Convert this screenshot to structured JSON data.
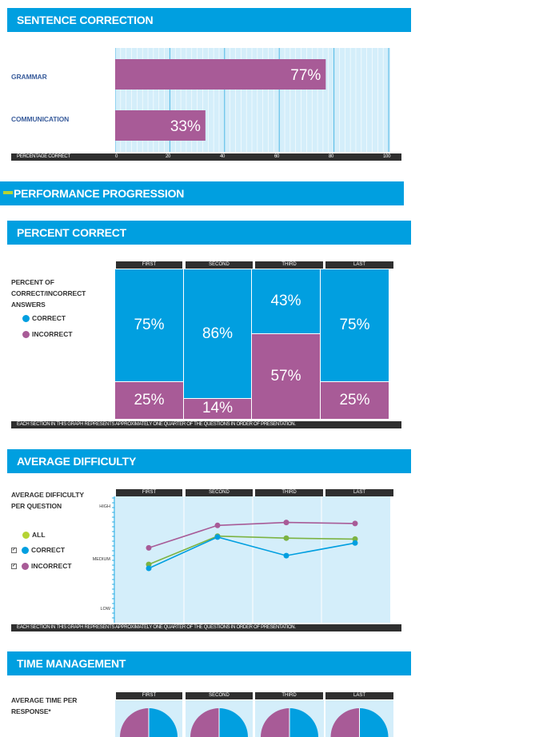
{
  "sections": {
    "sentence_correction": "SENTENCE CORRECTION",
    "performance_progression": "PERFORMANCE PROGRESSION",
    "percent_correct": "PERCENT CORRECT",
    "average_difficulty": "AVERAGE DIFFICULTY",
    "time_management": "TIME MANAGEMENT"
  },
  "colors": {
    "header": "#009fe0",
    "correct": "#019fe0",
    "incorrect": "#a85b97",
    "all": "#7cb342",
    "plot_bg": "#d4eefa"
  },
  "sentence_correction": {
    "axis_title": "PERCENTAGE CORRECT",
    "ticks": [
      "0",
      "20",
      "40",
      "60",
      "80",
      "100"
    ]
  },
  "percent_correct_panel": {
    "label_line1": "PERCENT OF",
    "label_line2": "CORRECT/INCORRECT",
    "label_line3": "ANSWERS",
    "legend_correct": "CORRECT",
    "legend_incorrect": "INCORRECT",
    "footnote": "EACH SECTION IN THIS GRAPH REPRESENTS APPROXIMATELY ONE QUARTER OF THE QUESTIONS IN ORDER OF PRESENTATION."
  },
  "difficulty_panel": {
    "label_line1": "AVERAGE DIFFICULTY",
    "label_line2": "PER QUESTION",
    "legend_all": "ALL",
    "legend_correct": "CORRECT",
    "legend_incorrect": "INCORRECT",
    "check_mark": "✓",
    "footnote": "EACH SECTION IN THIS GRAPH REPRESENTS APPROXIMATELY ONE QUARTER OF THE QUESTIONS IN ORDER OF PRESENTATION."
  },
  "time_panel": {
    "label_line1": "AVERAGE TIME PER",
    "label_line2": "RESPONSE*"
  },
  "chart_data": [
    {
      "type": "bar",
      "orientation": "horizontal",
      "categories": [
        "GRAMMAR",
        "COMMUNICATION"
      ],
      "values": [
        77,
        33
      ],
      "labels": [
        "77%",
        "33%"
      ],
      "xlabel": "PERCENTAGE CORRECT",
      "xlim": [
        0,
        100
      ],
      "grid": true
    },
    {
      "type": "bar",
      "stacked": true,
      "categories": [
        "FIRST",
        "SECOND",
        "THIRD",
        "LAST"
      ],
      "series": [
        {
          "name": "CORRECT",
          "values": [
            75,
            86,
            43,
            75
          ],
          "labels": [
            "75%",
            "86%",
            "43%",
            "75%"
          ]
        },
        {
          "name": "INCORRECT",
          "values": [
            25,
            14,
            57,
            25
          ],
          "labels": [
            "25%",
            "14%",
            "57%",
            "25%"
          ]
        }
      ],
      "ylim": [
        0,
        100
      ]
    },
    {
      "type": "line",
      "categories": [
        "FIRST",
        "SECOND",
        "THIRD",
        "LAST"
      ],
      "y_tick_labels": [
        "HIGH",
        "MEDIUM",
        "LOW"
      ],
      "series": [
        {
          "name": "ALL",
          "values": [
            0.45,
            0.74,
            0.72,
            0.71
          ]
        },
        {
          "name": "CORRECT",
          "values": [
            0.41,
            0.73,
            0.54,
            0.67
          ]
        },
        {
          "name": "INCORRECT",
          "values": [
            0.62,
            0.85,
            0.88,
            0.87
          ]
        }
      ],
      "ylim": [
        0,
        1
      ]
    },
    {
      "type": "pie",
      "categories": [
        "FIRST",
        "SECOND",
        "THIRD",
        "LAST"
      ],
      "note": "pies partially visible",
      "series": [
        {
          "name": "CORRECT",
          "values": [
            50,
            50,
            50,
            50
          ]
        },
        {
          "name": "INCORRECT",
          "values": [
            50,
            50,
            50,
            50
          ]
        }
      ]
    }
  ]
}
